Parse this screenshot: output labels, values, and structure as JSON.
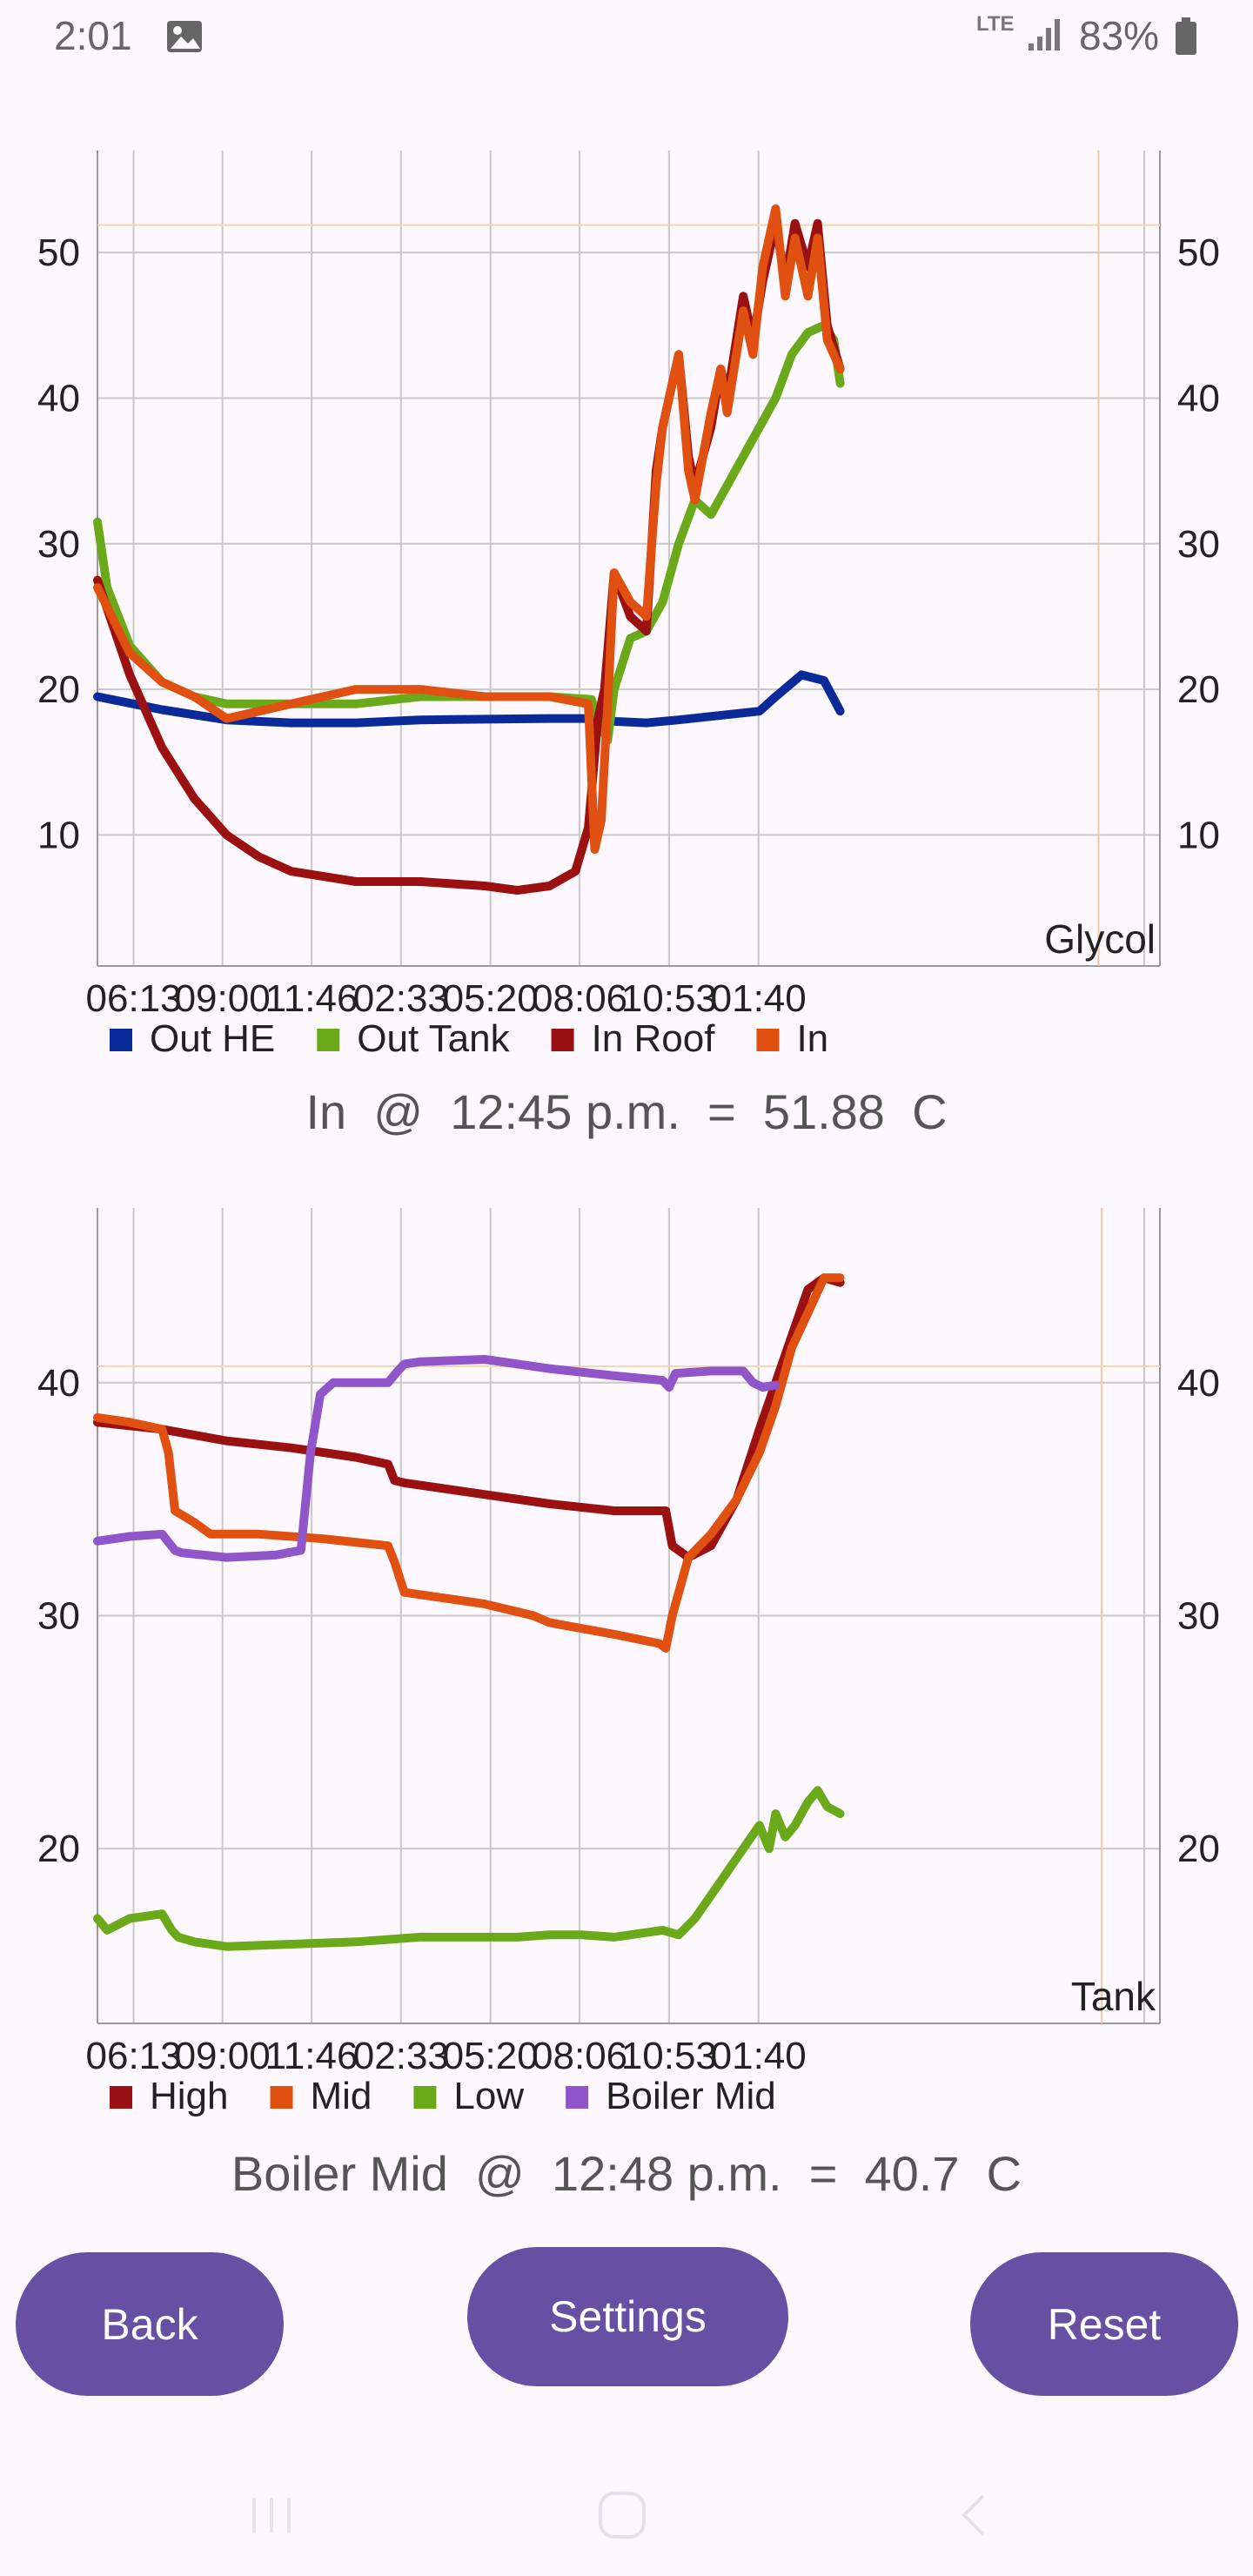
{
  "status_bar": {
    "time": "2:01",
    "network": "LTE",
    "battery": "83%",
    "icons": [
      "image-icon",
      "signal-icon",
      "battery-icon"
    ]
  },
  "chart_data": [
    {
      "type": "line",
      "title": "",
      "corner_label": "Glycol",
      "xlabel": "",
      "ylabel": "",
      "x_tick_labels": [
        "06:13",
        "09:00",
        "11:46",
        "02:33",
        "05:20",
        "08:06",
        "10:53",
        "01:40"
      ],
      "x_range_hours": [
        0,
        32.9
      ],
      "x_tick_positions_hours": [
        1.12,
        3.87,
        6.63,
        9.4,
        12.17,
        14.93,
        17.7,
        20.47
      ],
      "ylim": [
        1,
        57
      ],
      "y_ticks": [
        10,
        20,
        30,
        40,
        50
      ],
      "grid": true,
      "legend_position": "bottom",
      "crosshair": {
        "x": 31.0,
        "y": 51.88
      },
      "series": [
        {
          "name": "Out HE",
          "color": "#0a2a9a",
          "x": [
            0,
            2,
            4,
            6,
            8,
            10,
            14,
            15.2,
            15.5,
            16,
            17,
            18,
            20.5,
            21,
            21.8,
            22.5,
            23
          ],
          "y": [
            19.5,
            18.6,
            17.9,
            17.7,
            17.7,
            17.9,
            18,
            18,
            17.9,
            17.8,
            17.7,
            17.9,
            18.5,
            19.5,
            21,
            20.6,
            18.5
          ]
        },
        {
          "name": "Out Tank",
          "color": "#6aaa1a",
          "x": [
            0,
            0.3,
            1,
            2,
            3,
            4,
            6,
            8,
            10,
            12,
            14,
            15.3,
            15.5,
            15.8,
            16,
            16.5,
            17,
            17.5,
            18,
            18.5,
            19,
            19.5,
            20,
            20.5,
            21,
            21.5,
            22,
            22.5,
            22.8,
            23
          ],
          "y": [
            31.5,
            27,
            23,
            20.5,
            19.5,
            19,
            19,
            19,
            19.5,
            19.5,
            19.5,
            19.3,
            18,
            16.5,
            20,
            23.5,
            24,
            26,
            30,
            33,
            32,
            34,
            36,
            38,
            40,
            43,
            44.5,
            45,
            44,
            41
          ]
        },
        {
          "name": "In Roof",
          "color": "#9b1010",
          "x": [
            0,
            1,
            2,
            3,
            4,
            5,
            6,
            8,
            10,
            12,
            13,
            14,
            14.8,
            15.2,
            15.5,
            15.7,
            16,
            16.5,
            17,
            17.3,
            17.5,
            18,
            18.3,
            18.5,
            19,
            19.3,
            19.5,
            20,
            20.3,
            20.6,
            21,
            21.3,
            21.6,
            22,
            22.3,
            22.6,
            23
          ],
          "y": [
            27.5,
            21,
            16,
            12.5,
            10,
            8.5,
            7.5,
            6.8,
            6.8,
            6.5,
            6.2,
            6.5,
            7.5,
            10.5,
            18,
            20,
            28,
            25,
            24,
            35,
            38,
            43,
            36,
            34,
            38,
            42,
            40,
            47,
            44,
            48,
            52,
            48,
            52,
            49,
            52,
            45,
            42
          ]
        },
        {
          "name": "In",
          "color": "#e05010",
          "x": [
            0,
            1,
            2,
            3,
            4,
            5,
            6,
            8,
            10,
            12,
            14,
            15.2,
            15.4,
            15.6,
            15.8,
            16,
            16.5,
            17,
            17.3,
            17.5,
            18,
            18.3,
            18.5,
            19,
            19.3,
            19.5,
            20,
            20.3,
            20.6,
            21,
            21.3,
            21.6,
            22,
            22.3,
            22.6,
            23
          ],
          "y": [
            27,
            22.5,
            20.5,
            19.5,
            18,
            18.5,
            19,
            20,
            20,
            19.5,
            19.5,
            19,
            9,
            11,
            19,
            28,
            26,
            25,
            34,
            38,
            43,
            35,
            33,
            39,
            42,
            39,
            46,
            43,
            49,
            53,
            47,
            51,
            47,
            51,
            44,
            42
          ]
        }
      ]
    },
    {
      "type": "line",
      "title": "",
      "corner_label": "Tank",
      "xlabel": "",
      "ylabel": "",
      "x_tick_labels": [
        "06:13",
        "09:00",
        "11:46",
        "02:33",
        "05:20",
        "08:06",
        "10:53",
        "01:40"
      ],
      "x_range_hours": [
        0,
        32.9
      ],
      "x_tick_positions_hours": [
        1.12,
        3.87,
        6.63,
        9.4,
        12.17,
        14.93,
        17.7,
        20.47
      ],
      "ylim": [
        12.5,
        47.5
      ],
      "y_ticks": [
        20,
        30,
        40
      ],
      "grid": true,
      "legend_position": "bottom",
      "crosshair": {
        "x": 31.1,
        "y": 40.7
      },
      "series": [
        {
          "name": "High",
          "color": "#9b1010",
          "x": [
            0,
            2,
            4,
            6,
            8,
            9,
            9.2,
            9.5,
            12,
            14,
            16,
            17.6,
            17.8,
            18.3,
            19,
            19.8,
            20.5,
            21,
            21.5,
            22,
            22.5,
            23
          ],
          "y": [
            38.3,
            38,
            37.5,
            37.2,
            36.8,
            36.5,
            35.8,
            35.7,
            35.2,
            34.8,
            34.5,
            34.5,
            33,
            32.5,
            33,
            35,
            38,
            40,
            42,
            44,
            44.5,
            44.3
          ]
        },
        {
          "name": "Mid",
          "color": "#e05010",
          "x": [
            0,
            1,
            2,
            2.2,
            2.4,
            3,
            3.5,
            5,
            7,
            9,
            9.2,
            9.5,
            12,
            13.5,
            14,
            16,
            17.4,
            17.6,
            17.8,
            18.3,
            19,
            19.8,
            20.5,
            21,
            21.5,
            22,
            22.5,
            23
          ],
          "y": [
            38.5,
            38.3,
            38,
            37,
            34.5,
            34,
            33.5,
            33.5,
            33.3,
            33,
            32.3,
            31,
            30.5,
            30,
            29.7,
            29.2,
            28.8,
            28.6,
            30,
            32.5,
            33.5,
            35,
            37,
            39,
            41.5,
            43,
            44.5,
            44.5
          ]
        },
        {
          "name": "Low",
          "color": "#6aaa1a",
          "x": [
            0,
            0.3,
            1,
            2,
            2.3,
            2.5,
            3,
            4,
            6,
            8,
            10,
            13,
            14,
            15,
            16,
            17.5,
            18,
            18.5,
            19,
            19.5,
            20,
            20.5,
            20.8,
            21,
            21.3,
            21.6,
            22,
            22.3,
            22.6,
            23
          ],
          "y": [
            17,
            16.5,
            17,
            17.2,
            16.5,
            16.2,
            16,
            15.8,
            15.9,
            16,
            16.2,
            16.2,
            16.3,
            16.3,
            16.2,
            16.5,
            16.3,
            17,
            18,
            19,
            20,
            21,
            20,
            21.5,
            20.5,
            21,
            22,
            22.5,
            21.8,
            21.5
          ]
        },
        {
          "name": "Boiler Mid",
          "color": "#9055c8",
          "x": [
            0,
            1,
            2,
            2.4,
            2.6,
            4,
            5.5,
            6.3,
            6.6,
            6.9,
            7.3,
            9,
            9.3,
            9.5,
            10,
            12,
            14,
            16,
            17.5,
            17.7,
            17.9,
            19,
            20,
            20.3,
            20.6,
            21
          ],
          "y": [
            33.2,
            33.4,
            33.5,
            32.8,
            32.7,
            32.5,
            32.6,
            32.8,
            37,
            39.5,
            40,
            40,
            40.5,
            40.8,
            40.9,
            41,
            40.6,
            40.3,
            40.1,
            39.8,
            40.4,
            40.5,
            40.5,
            40,
            39.8,
            39.9
          ]
        }
      ]
    }
  ],
  "readouts": {
    "glycol": "In  @  12:45 p.m.  =  51.88  C",
    "tank": "Boiler Mid  @  12:48 p.m.  =  40.7  C"
  },
  "buttons": {
    "back": "Back",
    "settings": "Settings",
    "reset": "Reset"
  },
  "nav_bar": {
    "icons": [
      "recent-apps-icon",
      "home-icon",
      "back-nav-icon"
    ]
  }
}
